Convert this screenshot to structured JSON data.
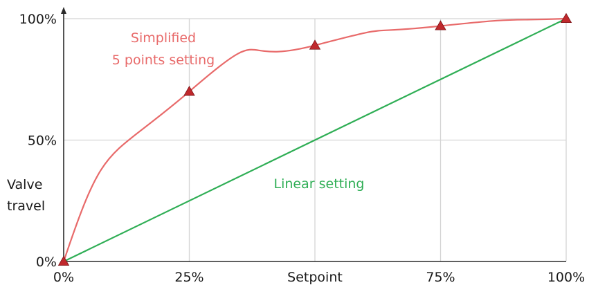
{
  "chart_data": {
    "type": "line",
    "xlabel": "Setpoint",
    "ylabel": [
      "Valve",
      "travel"
    ],
    "x_ticks": [
      {
        "value": 0,
        "label": "0%"
      },
      {
        "value": 25,
        "label": "25%"
      },
      {
        "value": 50,
        "label": "Setpoint"
      },
      {
        "value": 75,
        "label": "75%"
      },
      {
        "value": 100,
        "label": "100%"
      }
    ],
    "y_ticks": [
      {
        "value": 0,
        "label": "0%"
      },
      {
        "value": 50,
        "label": "50%"
      },
      {
        "value": 100,
        "label": "100%"
      }
    ],
    "xlim": [
      0,
      100
    ],
    "ylim": [
      0,
      100
    ],
    "grid": true,
    "series": [
      {
        "name": "Simplified 5 points setting",
        "label_lines": [
          "Simplified",
          "5 points setting"
        ],
        "color": "#e86a6a",
        "marker_color": "#c0282c",
        "points": [
          {
            "x": 0,
            "y": 0
          },
          {
            "x": 25,
            "y": 70
          },
          {
            "x": 50,
            "y": 89
          },
          {
            "x": 75,
            "y": 97
          },
          {
            "x": 100,
            "y": 100
          }
        ]
      },
      {
        "name": "Linear setting",
        "label_lines": [
          "Linear setting"
        ],
        "color": "#2fae55",
        "points": [
          {
            "x": 0,
            "y": 0
          },
          {
            "x": 100,
            "y": 100
          }
        ]
      }
    ]
  }
}
